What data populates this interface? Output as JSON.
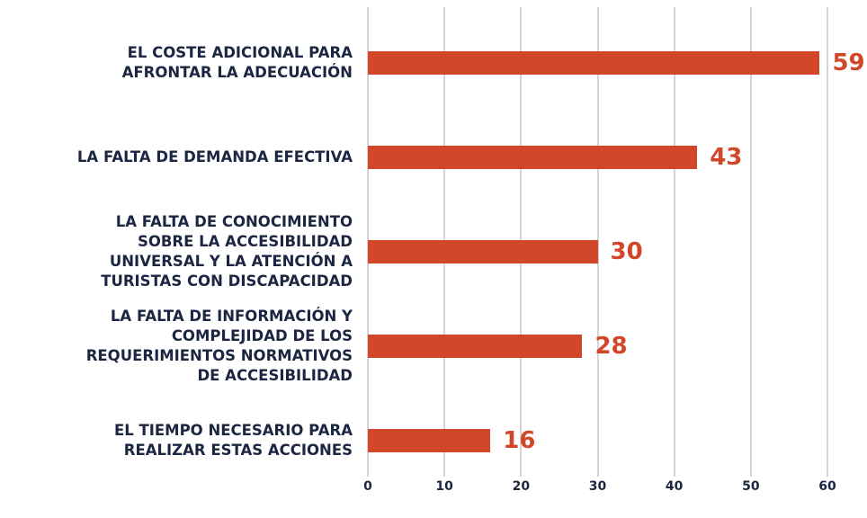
{
  "chart_data": {
    "type": "bar",
    "orientation": "horizontal",
    "categories": [
      "EL COSTE ADICIONAL PARA\nAFRONTAR LA ADECUACIÓN",
      "LA FALTA DE DEMANDA EFECTIVA",
      "LA FALTA DE CONOCIMIENTO\nSOBRE LA ACCESIBILIDAD\nUNIVERSAL Y LA ATENCIÓN A\nTURISTAS CON DISCAPACIDAD",
      "LA FALTA DE INFORMACIÓN Y\nCOMPLEJIDAD DE LOS\nREQUERIMIENTOS NORMATIVOS\nDE ACCESIBILIDAD",
      "EL TIEMPO NECESARIO PARA\nREALIZAR ESTAS ACCIONES"
    ],
    "values": [
      59,
      43,
      30,
      28,
      16
    ],
    "color": "#d2472a",
    "xlim": [
      0,
      60
    ],
    "xticks": [
      0,
      10,
      20,
      30,
      40,
      50,
      60
    ],
    "grid": true
  }
}
